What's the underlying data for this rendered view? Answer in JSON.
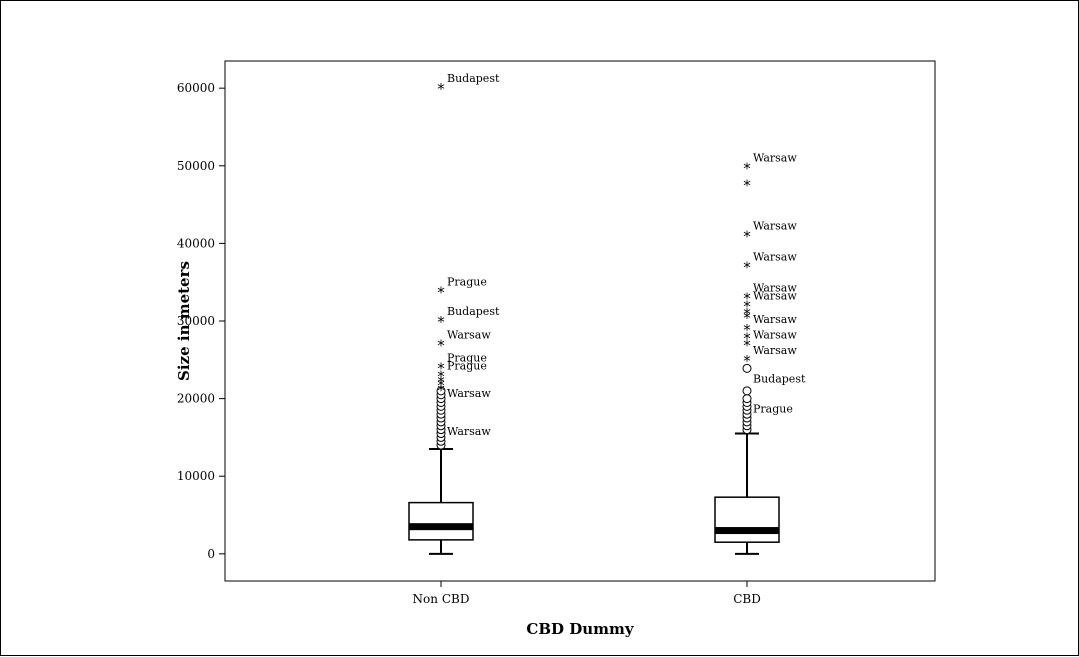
{
  "chart_data": {
    "type": "box",
    "title": "",
    "xlabel": "CBD Dummy",
    "ylabel": "Size in meters",
    "ylim": [
      -3500,
      63500
    ],
    "yticks": [
      0,
      10000,
      20000,
      30000,
      40000,
      50000,
      60000
    ],
    "grid": false,
    "categories": [
      "Non CBD",
      "CBD"
    ],
    "boxes": [
      {
        "category": "Non CBD",
        "whisker_low": 0,
        "q1": 1800,
        "median": 3500,
        "q3": 6600,
        "whisker_high": 13500,
        "outliers_circle": [
          14000,
          14500,
          15000,
          15500,
          16000,
          16500,
          17000,
          17500,
          18000,
          18500,
          19000,
          19500,
          20000,
          20500,
          21000
        ],
        "outliers_star": [
          {
            "value": 60000,
            "label": "Budapest"
          },
          {
            "value": 33800,
            "label": "Prague"
          },
          {
            "value": 30000,
            "label": "Budapest"
          },
          {
            "value": 27000,
            "label": "Warsaw"
          },
          {
            "value": 24000,
            "label": "Prague"
          },
          {
            "value": 23000,
            "label": "Prague"
          },
          {
            "value": 22300,
            "label": ""
          },
          {
            "value": 21800,
            "label": ""
          },
          {
            "value": 21200,
            "label": ""
          }
        ],
        "outlier_labels": [
          {
            "value": 20700,
            "label": "Warsaw"
          },
          {
            "value": 15800,
            "label": "Warsaw"
          }
        ]
      },
      {
        "category": "CBD",
        "whisker_low": 0,
        "q1": 1500,
        "median": 3000,
        "q3": 7300,
        "whisker_high": 15500,
        "outliers_circle": [
          16000,
          16500,
          17000,
          17500,
          18000,
          18500,
          19000,
          19500,
          20000,
          21000,
          23900
        ],
        "outliers_star": [
          {
            "value": 49800,
            "label": "Warsaw"
          },
          {
            "value": 47600,
            "label": ""
          },
          {
            "value": 41000,
            "label": "Warsaw"
          },
          {
            "value": 37000,
            "label": "Warsaw"
          },
          {
            "value": 33000,
            "label": "Warsaw"
          },
          {
            "value": 32000,
            "label": "Warsaw"
          },
          {
            "value": 31000,
            "label": ""
          },
          {
            "value": 30500,
            "label": ""
          },
          {
            "value": 29000,
            "label": "Warsaw"
          },
          {
            "value": 27900,
            "label": ""
          },
          {
            "value": 27000,
            "label": "Warsaw"
          },
          {
            "value": 25000,
            "label": "Warsaw"
          }
        ],
        "outlier_labels": [
          {
            "value": 22600,
            "label": "Budapest"
          },
          {
            "value": 18700,
            "label": "Prague"
          }
        ]
      }
    ]
  }
}
